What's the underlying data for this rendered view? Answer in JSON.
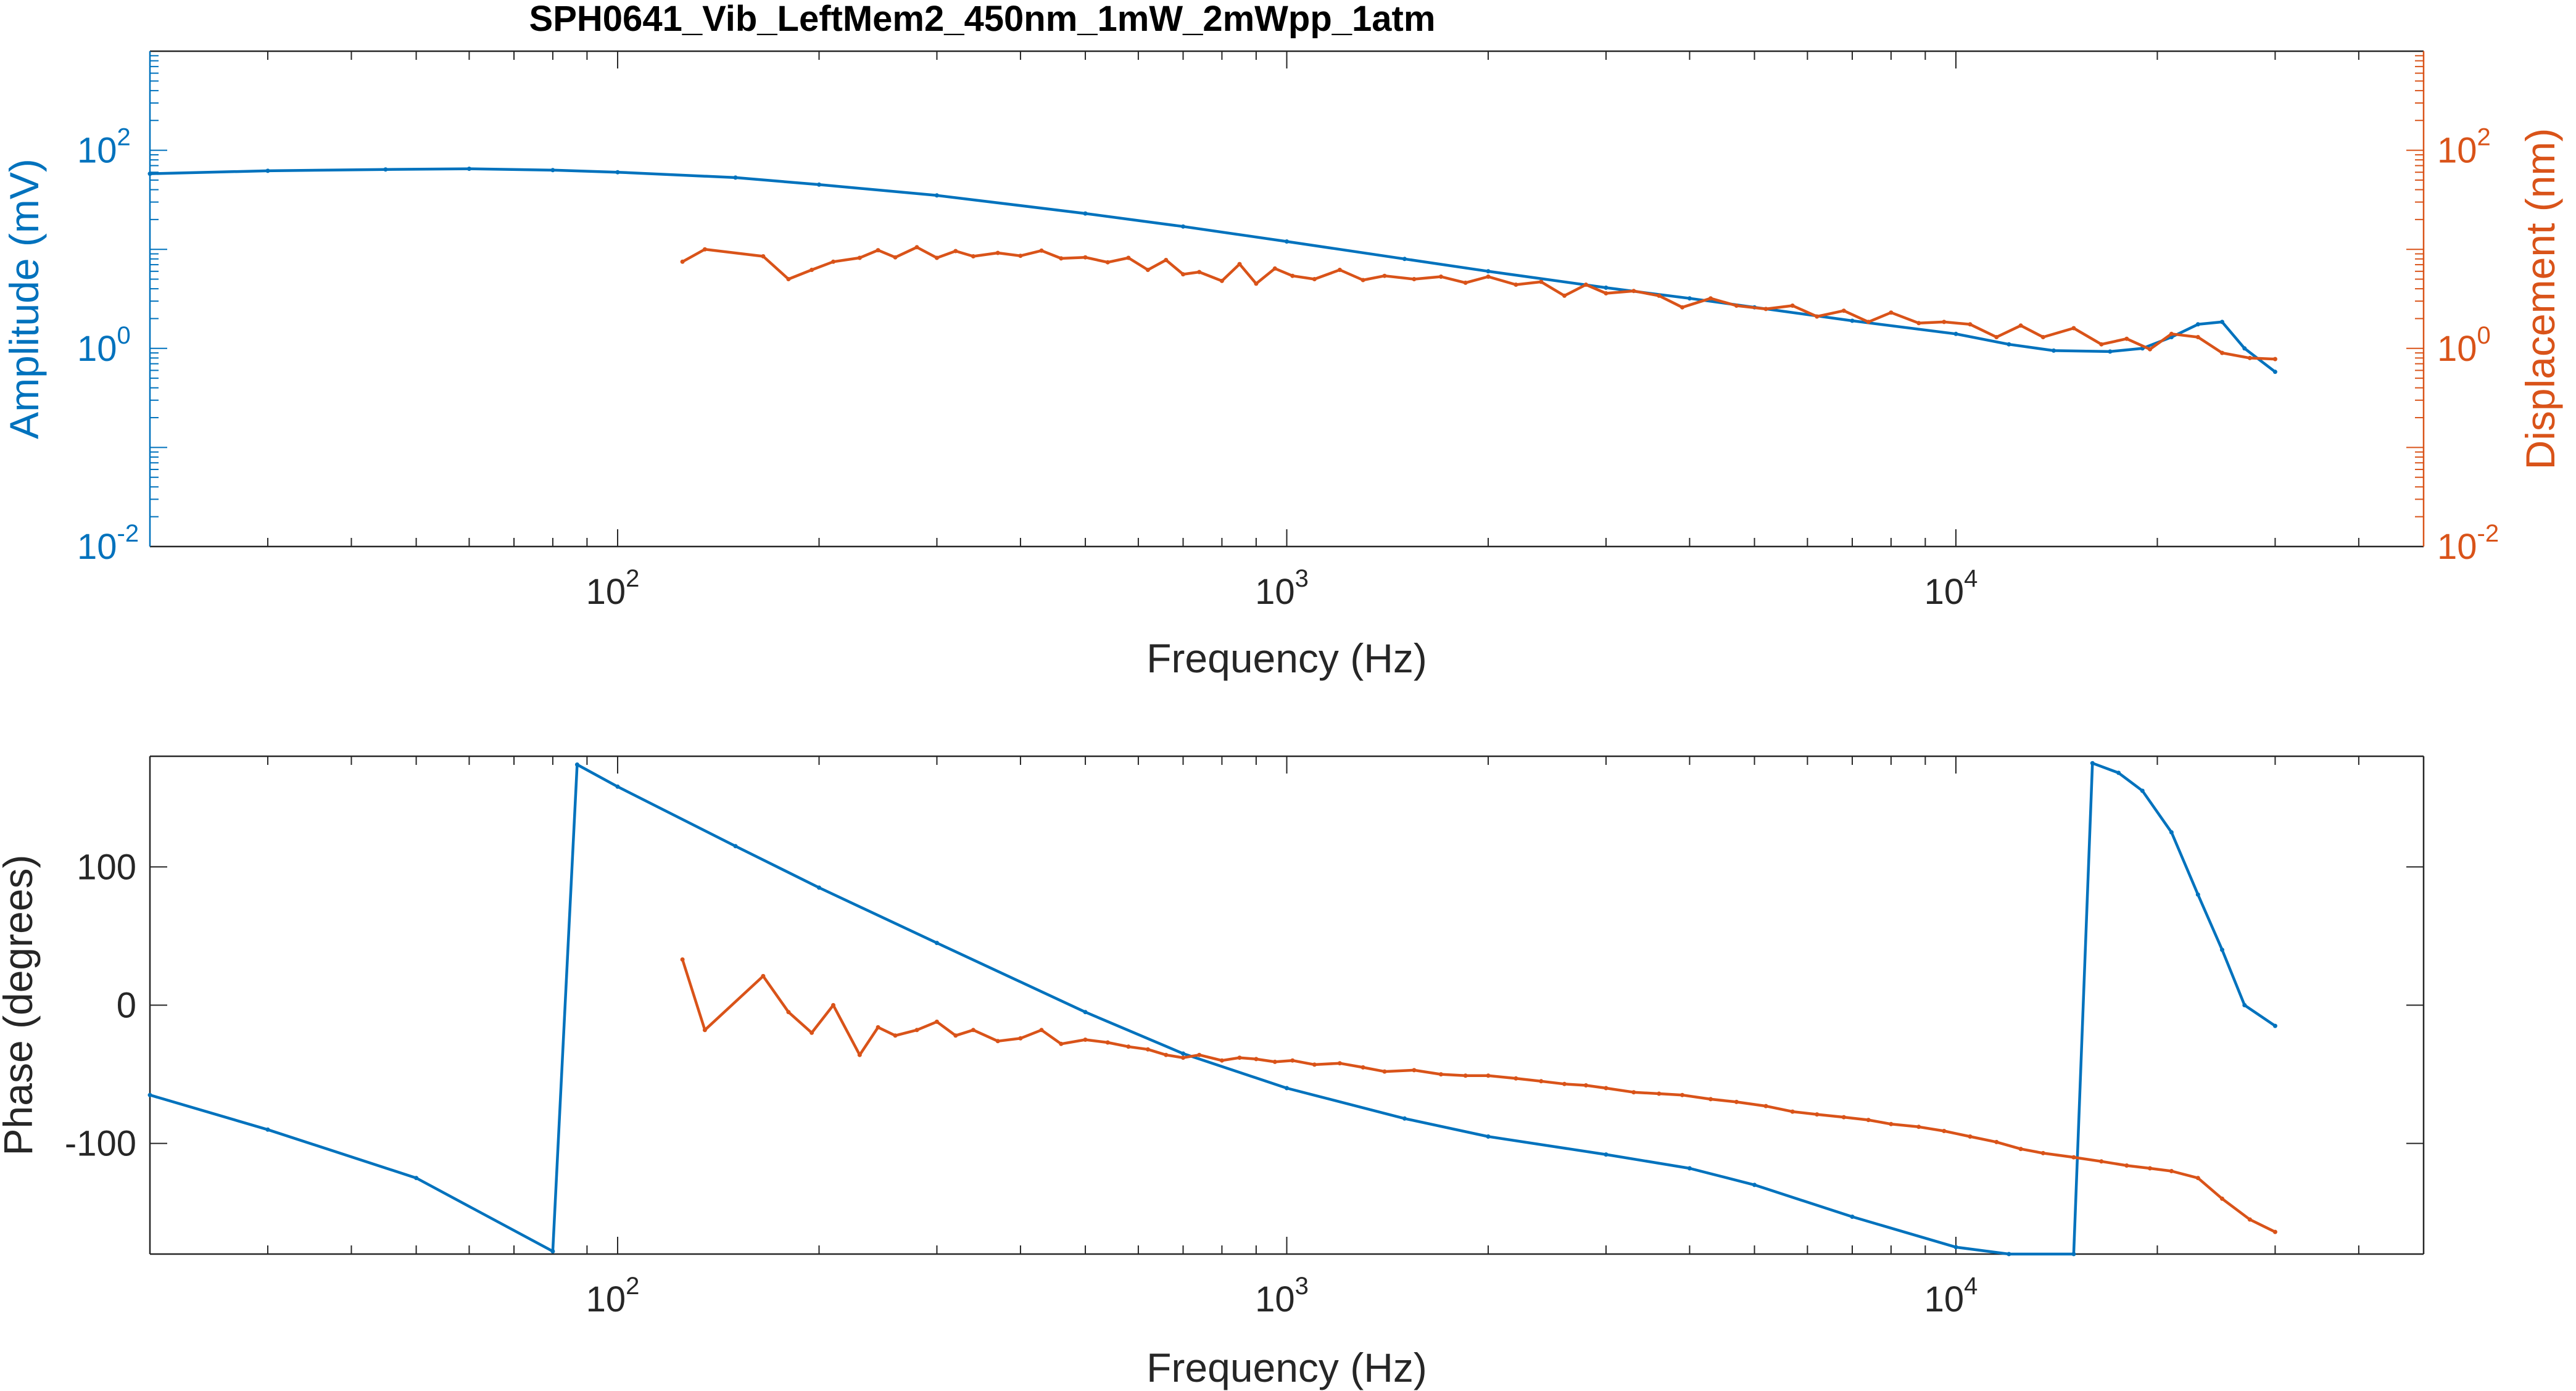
{
  "colors": {
    "amplitude": "#0072BD",
    "displacement": "#D95319",
    "axes": "#262626",
    "background": "#FFFFFF"
  },
  "chart_data": [
    {
      "type": "line",
      "title": "SPH0641_Vib_LeftMem2_450nm_1mW_2mWpp_1atm",
      "xlabel": "Frequency (Hz)",
      "ylabel": "Amplitude (mV)",
      "ylabel_right": "Displacement (nm)",
      "xscale": "log",
      "yscale": "log",
      "xlim": [
        20,
        50000
      ],
      "ylim": [
        0.01,
        1000
      ],
      "ylim_right": [
        0.01,
        1000
      ],
      "xticks": [
        100,
        1000,
        10000
      ],
      "xtick_labels": [
        {
          "base": "10",
          "exp": "2"
        },
        {
          "base": "10",
          "exp": "3"
        },
        {
          "base": "10",
          "exp": "4"
        }
      ],
      "yticks": [
        0.01,
        1,
        100
      ],
      "ytick_labels": [
        {
          "base": "10",
          "exp": "-2"
        },
        {
          "base": "10",
          "exp": "0"
        },
        {
          "base": "10",
          "exp": "2"
        }
      ],
      "ytick_labels_right": [
        {
          "base": "10",
          "exp": "-2"
        },
        {
          "base": "10",
          "exp": "0"
        },
        {
          "base": "10",
          "exp": "2"
        }
      ],
      "grid": false,
      "series": [
        {
          "axis": "left",
          "color": "#0072BD",
          "x": [
            20,
            30,
            45,
            60,
            80,
            100,
            150,
            200,
            300,
            500,
            700,
            1000,
            1500,
            2000,
            3000,
            4000,
            5000,
            7000,
            10000,
            12000,
            14000,
            17000,
            19000,
            21000,
            23000,
            25000,
            27000,
            30000
          ],
          "y": [
            58,
            62,
            64,
            65,
            63,
            60,
            53,
            45,
            35,
            23,
            17,
            12,
            8,
            6,
            4.1,
            3.2,
            2.6,
            1.9,
            1.4,
            1.1,
            0.95,
            0.93,
            1.0,
            1.3,
            1.75,
            1.85,
            1.0,
            0.58
          ]
        },
        {
          "axis": "right",
          "color": "#D95319",
          "x": [
            125,
            135,
            165,
            180,
            195,
            210,
            230,
            245,
            260,
            280,
            300,
            320,
            340,
            370,
            400,
            430,
            460,
            500,
            540,
            580,
            620,
            660,
            700,
            740,
            800,
            850,
            900,
            960,
            1020,
            1100,
            1200,
            1300,
            1400,
            1550,
            1700,
            1850,
            2000,
            2200,
            2400,
            2600,
            2800,
            3000,
            3300,
            3600,
            3900,
            4300,
            4700,
            5200,
            5700,
            6200,
            6800,
            7400,
            8000,
            8800,
            9600,
            10500,
            11500,
            12500,
            13500,
            15000,
            16500,
            18000,
            19500,
            21000,
            23000,
            25000,
            27500,
            30000
          ],
          "y": [
            7.5,
            10,
            8.5,
            5,
            6.2,
            7.5,
            8.2,
            9.8,
            8.3,
            10.5,
            8.2,
            9.6,
            8.5,
            9.2,
            8.6,
            9.7,
            8.1,
            8.3,
            7.4,
            8.2,
            6.2,
            7.8,
            5.6,
            5.9,
            4.8,
            7.1,
            4.5,
            6.4,
            5.4,
            5.0,
            6.2,
            4.9,
            5.4,
            5.0,
            5.3,
            4.6,
            5.3,
            4.4,
            4.7,
            3.4,
            4.4,
            3.6,
            3.8,
            3.4,
            2.6,
            3.2,
            2.7,
            2.5,
            2.7,
            2.1,
            2.4,
            1.85,
            2.3,
            1.8,
            1.85,
            1.75,
            1.3,
            1.7,
            1.3,
            1.6,
            1.1,
            1.25,
            0.98,
            1.4,
            1.3,
            0.9,
            0.8,
            0.78
          ]
        }
      ]
    },
    {
      "type": "line",
      "title": "",
      "xlabel": "Frequency (Hz)",
      "ylabel": "Phase (degrees)",
      "xscale": "log",
      "yscale": "linear",
      "xlim": [
        20,
        50000
      ],
      "ylim": [
        -180,
        180
      ],
      "xticks": [
        100,
        1000,
        10000
      ],
      "xtick_labels": [
        {
          "base": "10",
          "exp": "2"
        },
        {
          "base": "10",
          "exp": "3"
        },
        {
          "base": "10",
          "exp": "4"
        }
      ],
      "yticks": [
        -100,
        0,
        100
      ],
      "ytick_labels": [
        "-100",
        "0",
        "100"
      ],
      "grid": false,
      "series": [
        {
          "axis": "left",
          "color": "#0072BD",
          "x": [
            20,
            30,
            50,
            80,
            87,
            100,
            150,
            200,
            300,
            500,
            700,
            1000,
            1500,
            2000,
            3000,
            4000,
            5000,
            7000,
            10000,
            12000,
            15000,
            16000,
            17500,
            19000,
            21000,
            23000,
            25000,
            27000,
            30000
          ],
          "y": [
            -65,
            -90,
            -125,
            -178,
            174,
            158,
            115,
            85,
            45,
            -5,
            -35,
            -60,
            -82,
            -95,
            -108,
            -118,
            -130,
            -153,
            -175,
            -180,
            -180,
            175,
            168,
            155,
            125,
            80,
            40,
            0,
            -15
          ]
        },
        {
          "axis": "left",
          "color": "#D95319",
          "x": [
            125,
            135,
            165,
            180,
            195,
            210,
            230,
            245,
            260,
            280,
            300,
            320,
            340,
            370,
            400,
            430,
            460,
            500,
            540,
            580,
            620,
            660,
            700,
            740,
            800,
            850,
            900,
            960,
            1020,
            1100,
            1200,
            1300,
            1400,
            1550,
            1700,
            1850,
            2000,
            2200,
            2400,
            2600,
            2800,
            3000,
            3300,
            3600,
            3900,
            4300,
            4700,
            5200,
            5700,
            6200,
            6800,
            7400,
            8000,
            8800,
            9600,
            10500,
            11500,
            12500,
            13500,
            15000,
            16500,
            18000,
            19500,
            21000,
            23000,
            25000,
            27500,
            30000
          ],
          "y": [
            33,
            -18,
            21,
            -5,
            -20,
            0,
            -36,
            -16,
            -22,
            -18,
            -12,
            -22,
            -18,
            -26,
            -24,
            -18,
            -28,
            -25,
            -27,
            -30,
            -32,
            -36,
            -38,
            -36,
            -40,
            -38,
            -39,
            -41,
            -40,
            -43,
            -42,
            -45,
            -48,
            -47,
            -50,
            -51,
            -51,
            -53,
            -55,
            -57,
            -58,
            -60,
            -63,
            -64,
            -65,
            -68,
            -70,
            -73,
            -77,
            -79,
            -81,
            -83,
            -86,
            -88,
            -91,
            -95,
            -99,
            -104,
            -107,
            -110,
            -113,
            -116,
            -118,
            -120,
            -125,
            -140,
            -155,
            -164
          ]
        }
      ]
    }
  ]
}
